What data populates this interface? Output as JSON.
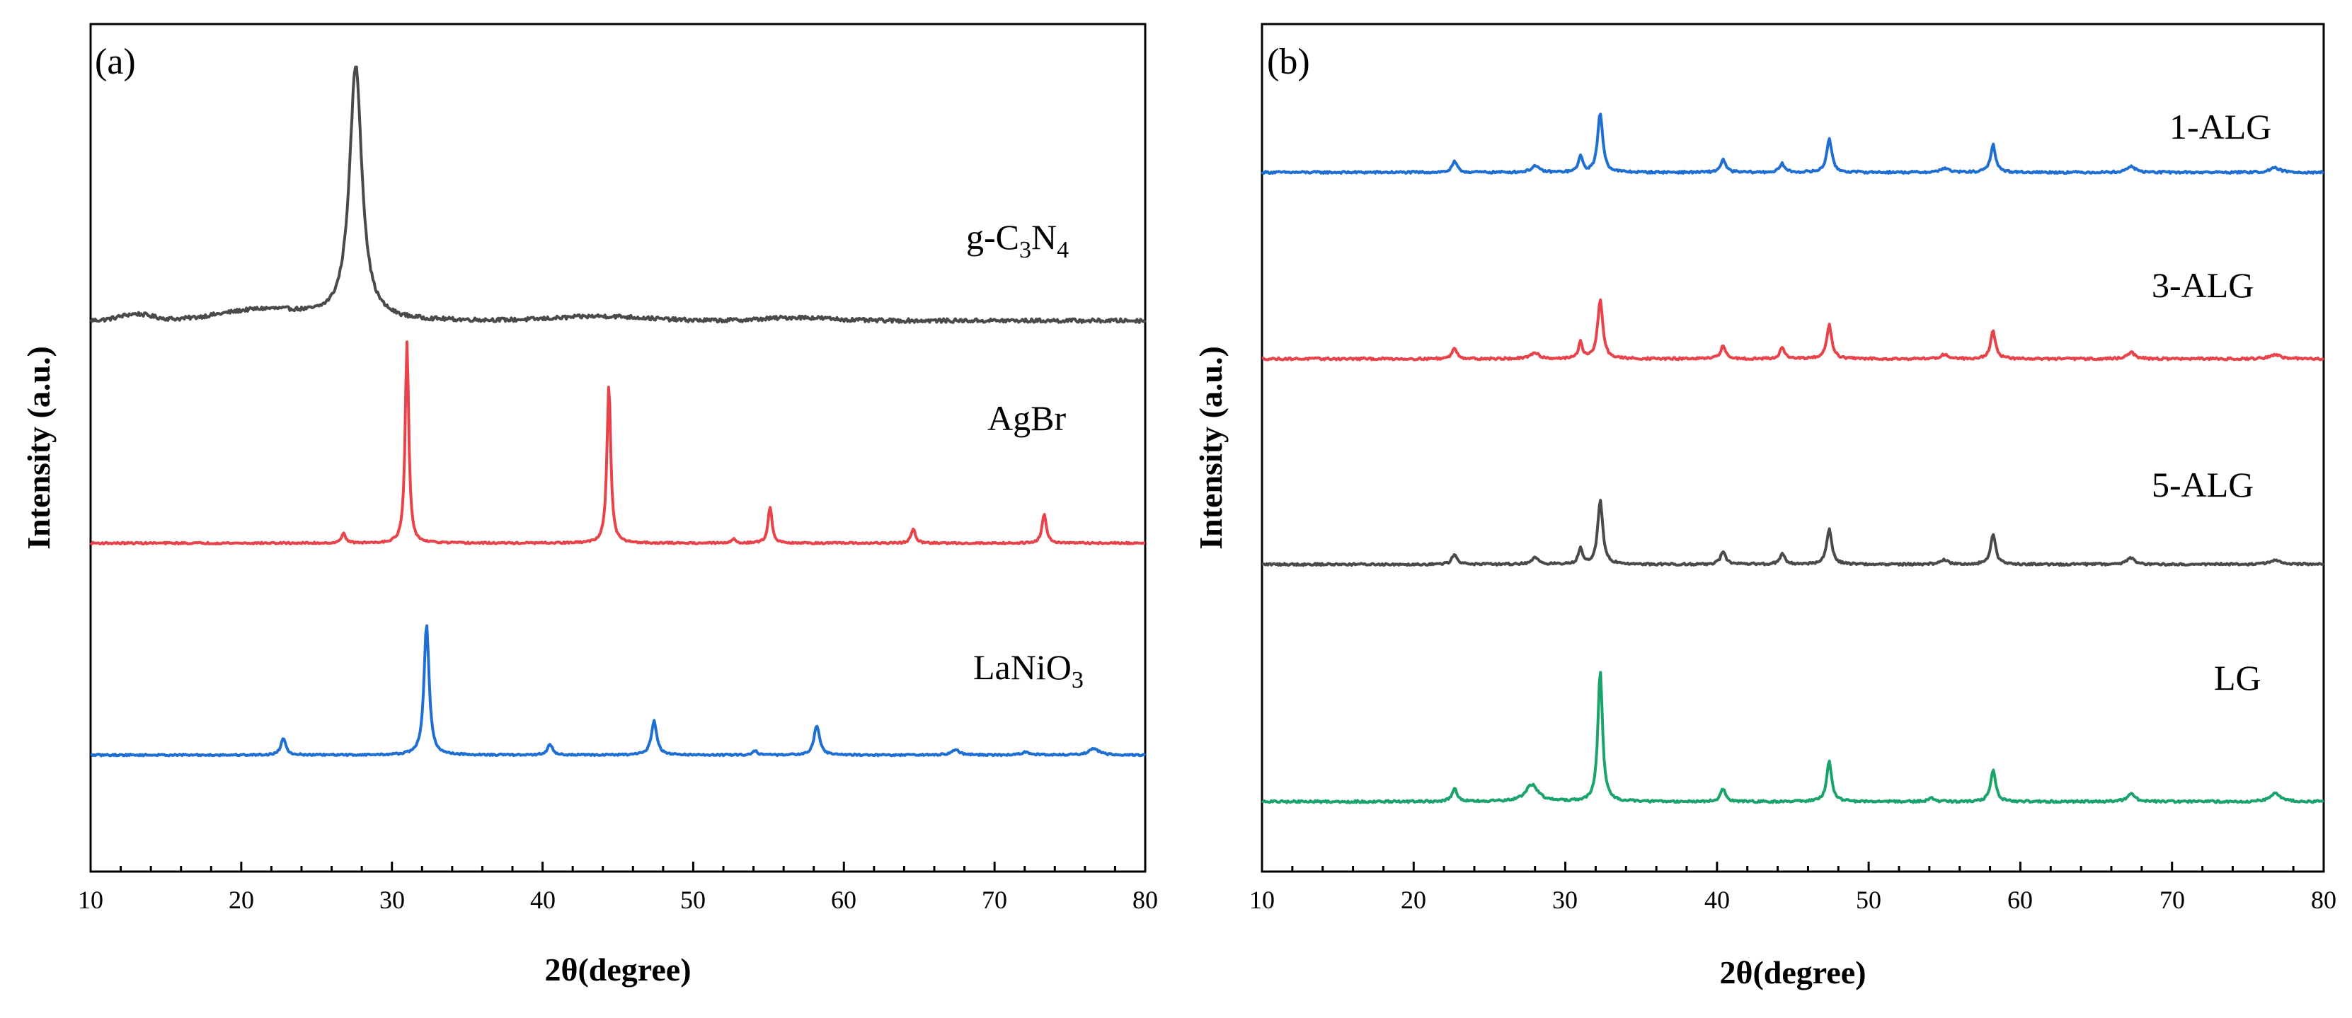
{
  "chart_data": [
    {
      "type": "line",
      "panel_label": "(a)",
      "xlabel": "2θ(degree)",
      "ylabel": "Intensity (a.u.)",
      "xlim": [
        10,
        80
      ],
      "x_ticks": [
        "10",
        "20",
        "30",
        "40",
        "50",
        "60",
        "70",
        "80"
      ],
      "grid": false,
      "series": [
        {
          "name": "g-C3N4",
          "label_main": "g-C",
          "label_sub1": "3",
          "label_mid": "N",
          "label_sub2": "4",
          "color": "#4a4a4a",
          "baseline": 2.6,
          "noise": 0.018,
          "humps": [
            {
              "x": 13.0,
              "h": 0.03,
              "w": 1.5
            },
            {
              "x": 21.5,
              "h": 0.05,
              "w": 4.0
            },
            {
              "x": 44.0,
              "h": 0.02,
              "w": 4.0
            },
            {
              "x": 57.0,
              "h": 0.015,
              "w": 3.0
            }
          ],
          "peaks": [
            {
              "x": 27.6,
              "h": 1.2,
              "w": 0.5
            }
          ]
        },
        {
          "name": "AgBr",
          "label_main": "AgBr",
          "color": "#e8434b",
          "baseline": 1.55,
          "noise": 0.008,
          "humps": [],
          "peaks": [
            {
              "x": 26.8,
              "h": 0.05,
              "w": 0.15
            },
            {
              "x": 31.0,
              "h": 0.95,
              "w": 0.14
            },
            {
              "x": 44.4,
              "h": 0.75,
              "w": 0.15
            },
            {
              "x": 52.7,
              "h": 0.02,
              "w": 0.15
            },
            {
              "x": 55.1,
              "h": 0.17,
              "w": 0.16
            },
            {
              "x": 64.6,
              "h": 0.07,
              "w": 0.16
            },
            {
              "x": 73.3,
              "h": 0.14,
              "w": 0.17
            }
          ]
        },
        {
          "name": "LaNiO3",
          "label_main": "LaNiO",
          "label_sub1": "3",
          "color": "#1f6fd2",
          "baseline": 0.55,
          "noise": 0.008,
          "humps": [],
          "peaks": [
            {
              "x": 22.8,
              "h": 0.08,
              "w": 0.2
            },
            {
              "x": 32.3,
              "h": 0.62,
              "w": 0.2
            },
            {
              "x": 40.5,
              "h": 0.05,
              "w": 0.2
            },
            {
              "x": 47.4,
              "h": 0.16,
              "w": 0.22
            },
            {
              "x": 54.1,
              "h": 0.02,
              "w": 0.2
            },
            {
              "x": 58.2,
              "h": 0.14,
              "w": 0.22
            },
            {
              "x": 67.4,
              "h": 0.025,
              "w": 0.3
            },
            {
              "x": 72.1,
              "h": 0.015,
              "w": 0.3
            },
            {
              "x": 76.6,
              "h": 0.03,
              "w": 0.4
            }
          ]
        }
      ]
    },
    {
      "type": "line",
      "panel_label": "(b)",
      "xlabel": "2θ(degree)",
      "ylabel": "Intensity (a.u.)",
      "xlim": [
        10,
        80
      ],
      "x_ticks": [
        "10",
        "20",
        "30",
        "40",
        "50",
        "60",
        "70",
        "80"
      ],
      "grid": false,
      "series": [
        {
          "name": "1-ALG",
          "label_main": "1-ALG",
          "color": "#1f6fd2",
          "baseline": 3.3,
          "noise": 0.01,
          "humps": [],
          "peaks": [
            {
              "x": 22.7,
              "h": 0.05,
              "w": 0.2
            },
            {
              "x": 28.0,
              "h": 0.03,
              "w": 0.3
            },
            {
              "x": 31.0,
              "h": 0.08,
              "w": 0.15
            },
            {
              "x": 32.3,
              "h": 0.28,
              "w": 0.2
            },
            {
              "x": 40.4,
              "h": 0.06,
              "w": 0.2
            },
            {
              "x": 44.3,
              "h": 0.04,
              "w": 0.2
            },
            {
              "x": 47.4,
              "h": 0.16,
              "w": 0.2
            },
            {
              "x": 55.0,
              "h": 0.02,
              "w": 0.3
            },
            {
              "x": 58.2,
              "h": 0.13,
              "w": 0.2
            },
            {
              "x": 67.3,
              "h": 0.03,
              "w": 0.3
            },
            {
              "x": 76.8,
              "h": 0.02,
              "w": 0.4
            }
          ]
        },
        {
          "name": "3-ALG",
          "label_main": "3-ALG",
          "color": "#e8434b",
          "baseline": 2.42,
          "noise": 0.01,
          "humps": [],
          "peaks": [
            {
              "x": 22.7,
              "h": 0.05,
              "w": 0.2
            },
            {
              "x": 28.0,
              "h": 0.03,
              "w": 0.3
            },
            {
              "x": 31.0,
              "h": 0.08,
              "w": 0.15
            },
            {
              "x": 32.3,
              "h": 0.28,
              "w": 0.2
            },
            {
              "x": 40.4,
              "h": 0.06,
              "w": 0.2
            },
            {
              "x": 44.3,
              "h": 0.05,
              "w": 0.2
            },
            {
              "x": 47.4,
              "h": 0.16,
              "w": 0.2
            },
            {
              "x": 55.0,
              "h": 0.02,
              "w": 0.3
            },
            {
              "x": 58.2,
              "h": 0.13,
              "w": 0.2
            },
            {
              "x": 67.3,
              "h": 0.03,
              "w": 0.3
            },
            {
              "x": 76.8,
              "h": 0.02,
              "w": 0.4
            }
          ]
        },
        {
          "name": "5-ALG",
          "label_main": "5-ALG",
          "color": "#4a4a4a",
          "baseline": 1.45,
          "noise": 0.01,
          "humps": [],
          "peaks": [
            {
              "x": 22.7,
              "h": 0.05,
              "w": 0.2
            },
            {
              "x": 28.0,
              "h": 0.03,
              "w": 0.3
            },
            {
              "x": 31.0,
              "h": 0.08,
              "w": 0.15
            },
            {
              "x": 32.3,
              "h": 0.3,
              "w": 0.2
            },
            {
              "x": 40.4,
              "h": 0.06,
              "w": 0.2
            },
            {
              "x": 44.3,
              "h": 0.05,
              "w": 0.2
            },
            {
              "x": 47.4,
              "h": 0.17,
              "w": 0.2
            },
            {
              "x": 55.0,
              "h": 0.02,
              "w": 0.3
            },
            {
              "x": 58.2,
              "h": 0.14,
              "w": 0.2
            },
            {
              "x": 67.3,
              "h": 0.03,
              "w": 0.3
            },
            {
              "x": 76.8,
              "h": 0.02,
              "w": 0.4
            }
          ]
        },
        {
          "name": "LG",
          "label_main": "LG",
          "color": "#1aa36a",
          "baseline": 0.33,
          "noise": 0.01,
          "humps": [],
          "peaks": [
            {
              "x": 22.7,
              "h": 0.06,
              "w": 0.2
            },
            {
              "x": 27.8,
              "h": 0.08,
              "w": 0.5
            },
            {
              "x": 32.3,
              "h": 0.62,
              "w": 0.18
            },
            {
              "x": 40.4,
              "h": 0.06,
              "w": 0.2
            },
            {
              "x": 47.4,
              "h": 0.19,
              "w": 0.2
            },
            {
              "x": 54.1,
              "h": 0.02,
              "w": 0.2
            },
            {
              "x": 58.2,
              "h": 0.15,
              "w": 0.2
            },
            {
              "x": 67.3,
              "h": 0.04,
              "w": 0.3
            },
            {
              "x": 76.8,
              "h": 0.04,
              "w": 0.4
            }
          ]
        }
      ]
    }
  ]
}
